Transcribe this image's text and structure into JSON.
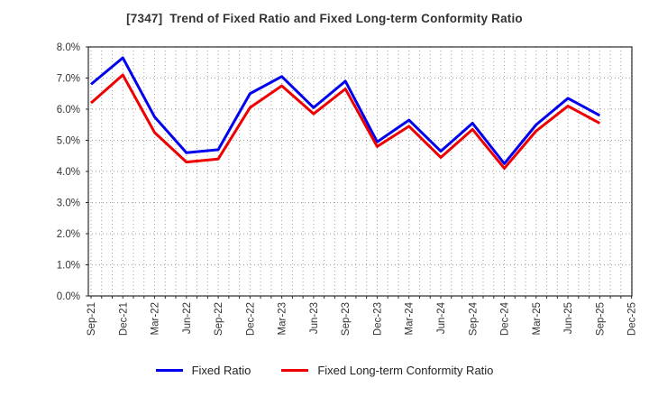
{
  "chart_data": {
    "type": "line",
    "title": "[7347]  Trend of Fixed Ratio and Fixed Long-term Conformity Ratio",
    "categories": [
      "Sep-21",
      "Dec-21",
      "Mar-22",
      "Jun-22",
      "Sep-22",
      "Dec-22",
      "Mar-23",
      "Jun-23",
      "Sep-23",
      "Dec-23",
      "Mar-24",
      "Jun-24",
      "Sep-24",
      "Dec-24",
      "Mar-25",
      "Jun-25",
      "Sep-25",
      "Dec-25"
    ],
    "series": [
      {
        "name": "Fixed Ratio",
        "color": "#0000ee",
        "values": [
          6.8,
          7.65,
          5.75,
          4.6,
          4.7,
          6.5,
          7.05,
          6.05,
          6.9,
          4.95,
          5.65,
          4.65,
          5.55,
          4.25,
          5.5,
          6.35,
          5.8
        ]
      },
      {
        "name": "Fixed Long-term Conformity Ratio",
        "color": "#ee0000",
        "values": [
          6.2,
          7.1,
          5.25,
          4.3,
          4.4,
          6.05,
          6.75,
          5.85,
          6.65,
          4.8,
          5.45,
          4.45,
          5.35,
          4.1,
          5.3,
          6.1,
          5.55
        ]
      }
    ],
    "xlabel": "",
    "ylabel": "",
    "ylim": [
      0,
      8
    ],
    "y_tick_labels": [
      "0.0%",
      "1.0%",
      "2.0%",
      "3.0%",
      "4.0%",
      "5.0%",
      "6.0%",
      "7.0%",
      "8.0%"
    ],
    "grid": true,
    "minor_x_divisions_per_quarter": 3,
    "legend_position": "bottom"
  },
  "legend": {
    "items": [
      {
        "label": "Fixed Ratio",
        "color": "#0000ee"
      },
      {
        "label": "Fixed Long-term Conformity Ratio",
        "color": "#ee0000"
      }
    ]
  },
  "colors": {
    "series_blue": "#0000ee",
    "series_red": "#ee0000",
    "gridline": "#9e9e9e",
    "axis_border": "#2a2a2a",
    "tick_text": "#333333"
  }
}
